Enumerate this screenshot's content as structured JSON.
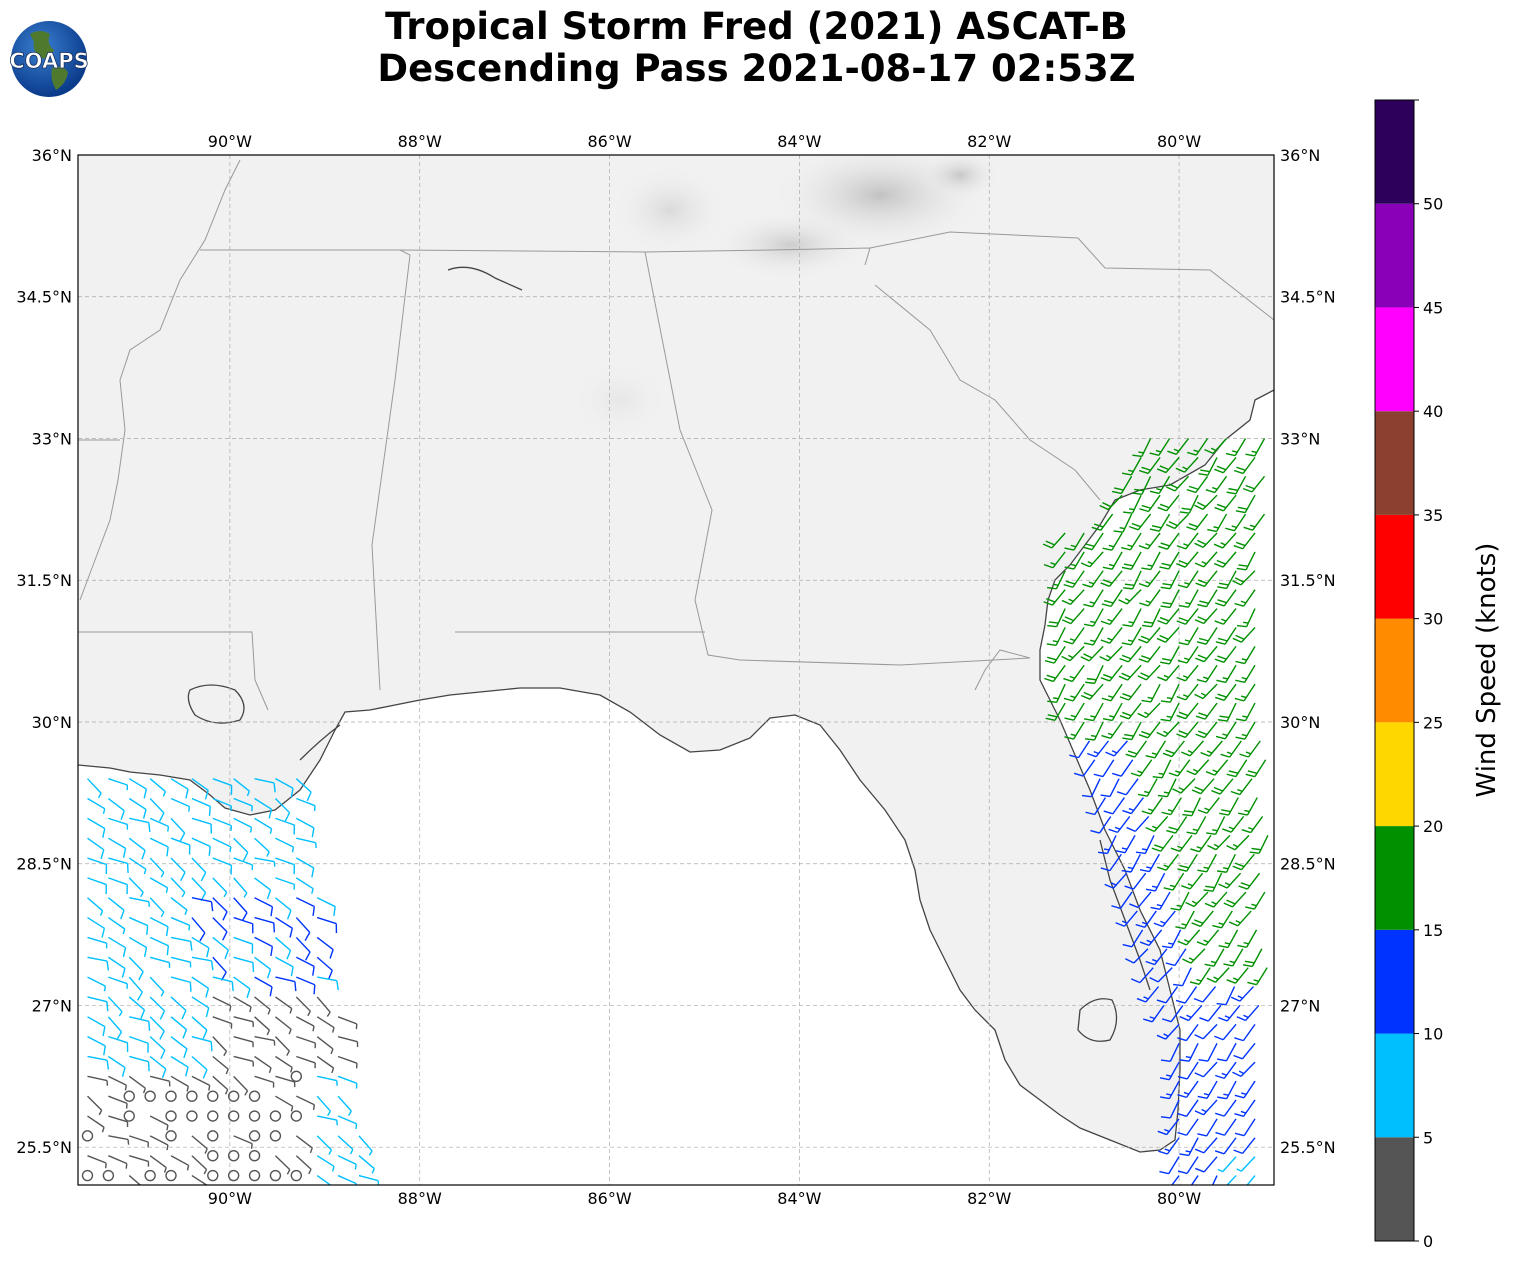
{
  "title": {
    "line1": "Tropical Storm Fred (2021) ASCAT-B",
    "line2": "Descending Pass 2021-08-17 02:53Z"
  },
  "logo": {
    "text": "COAPS"
  },
  "map": {
    "lon_range": [
      -91.6,
      -79.0
    ],
    "lat_range": [
      25.1,
      36.0
    ],
    "lon_ticks": [
      {
        "value": -90,
        "label": "90°W"
      },
      {
        "value": -88,
        "label": "88°W"
      },
      {
        "value": -86,
        "label": "86°W"
      },
      {
        "value": -84,
        "label": "84°W"
      },
      {
        "value": -82,
        "label": "82°W"
      },
      {
        "value": -80,
        "label": "80°W"
      }
    ],
    "lat_ticks": [
      {
        "value": 36,
        "label": "36°N"
      },
      {
        "value": 34.5,
        "label": "34.5°N"
      },
      {
        "value": 33,
        "label": "33°N"
      },
      {
        "value": 31.5,
        "label": "31.5°N"
      },
      {
        "value": 30,
        "label": "30°N"
      },
      {
        "value": 28.5,
        "label": "28.5°N"
      },
      {
        "value": 27,
        "label": "27°N"
      },
      {
        "value": 25.5,
        "label": "25.5°N"
      }
    ],
    "grid": true
  },
  "colorbar": {
    "label": "Wind Speed (knots)",
    "range": [
      0,
      55
    ],
    "ticks": [
      {
        "value": 0,
        "label": "0"
      },
      {
        "value": 5,
        "label": "5"
      },
      {
        "value": 10,
        "label": "10"
      },
      {
        "value": 15,
        "label": "15"
      },
      {
        "value": 20,
        "label": "20"
      },
      {
        "value": 25,
        "label": "25"
      },
      {
        "value": 30,
        "label": "30"
      },
      {
        "value": 35,
        "label": "35"
      },
      {
        "value": 40,
        "label": "40"
      },
      {
        "value": 45,
        "label": "45"
      },
      {
        "value": 50,
        "label": "50"
      }
    ],
    "bins": [
      {
        "from": 0,
        "to": 5,
        "color": "#555555"
      },
      {
        "from": 5,
        "to": 10,
        "color": "#00bfff"
      },
      {
        "from": 10,
        "to": 15,
        "color": "#0033ff"
      },
      {
        "from": 15,
        "to": 20,
        "color": "#009000"
      },
      {
        "from": 20,
        "to": 25,
        "color": "#ffd700"
      },
      {
        "from": 25,
        "to": 30,
        "color": "#ff8c00"
      },
      {
        "from": 30,
        "to": 35,
        "color": "#ff0000"
      },
      {
        "from": 35,
        "to": 40,
        "color": "#8b4030"
      },
      {
        "from": 40,
        "to": 45,
        "color": "#ff00ff"
      },
      {
        "from": 45,
        "to": 50,
        "color": "#8a00b8"
      },
      {
        "from": 50,
        "to": 55,
        "color": "#2d005c"
      }
    ]
  },
  "wind_swaths": [
    {
      "name": "western-gulf",
      "lon": [
        -91.6,
        -88.6
      ],
      "lat": [
        25.1,
        29.5
      ]
    },
    {
      "name": "atlantic",
      "lon": [
        -81.3,
        -79.0
      ],
      "lat": [
        25.1,
        33.0
      ]
    }
  ]
}
